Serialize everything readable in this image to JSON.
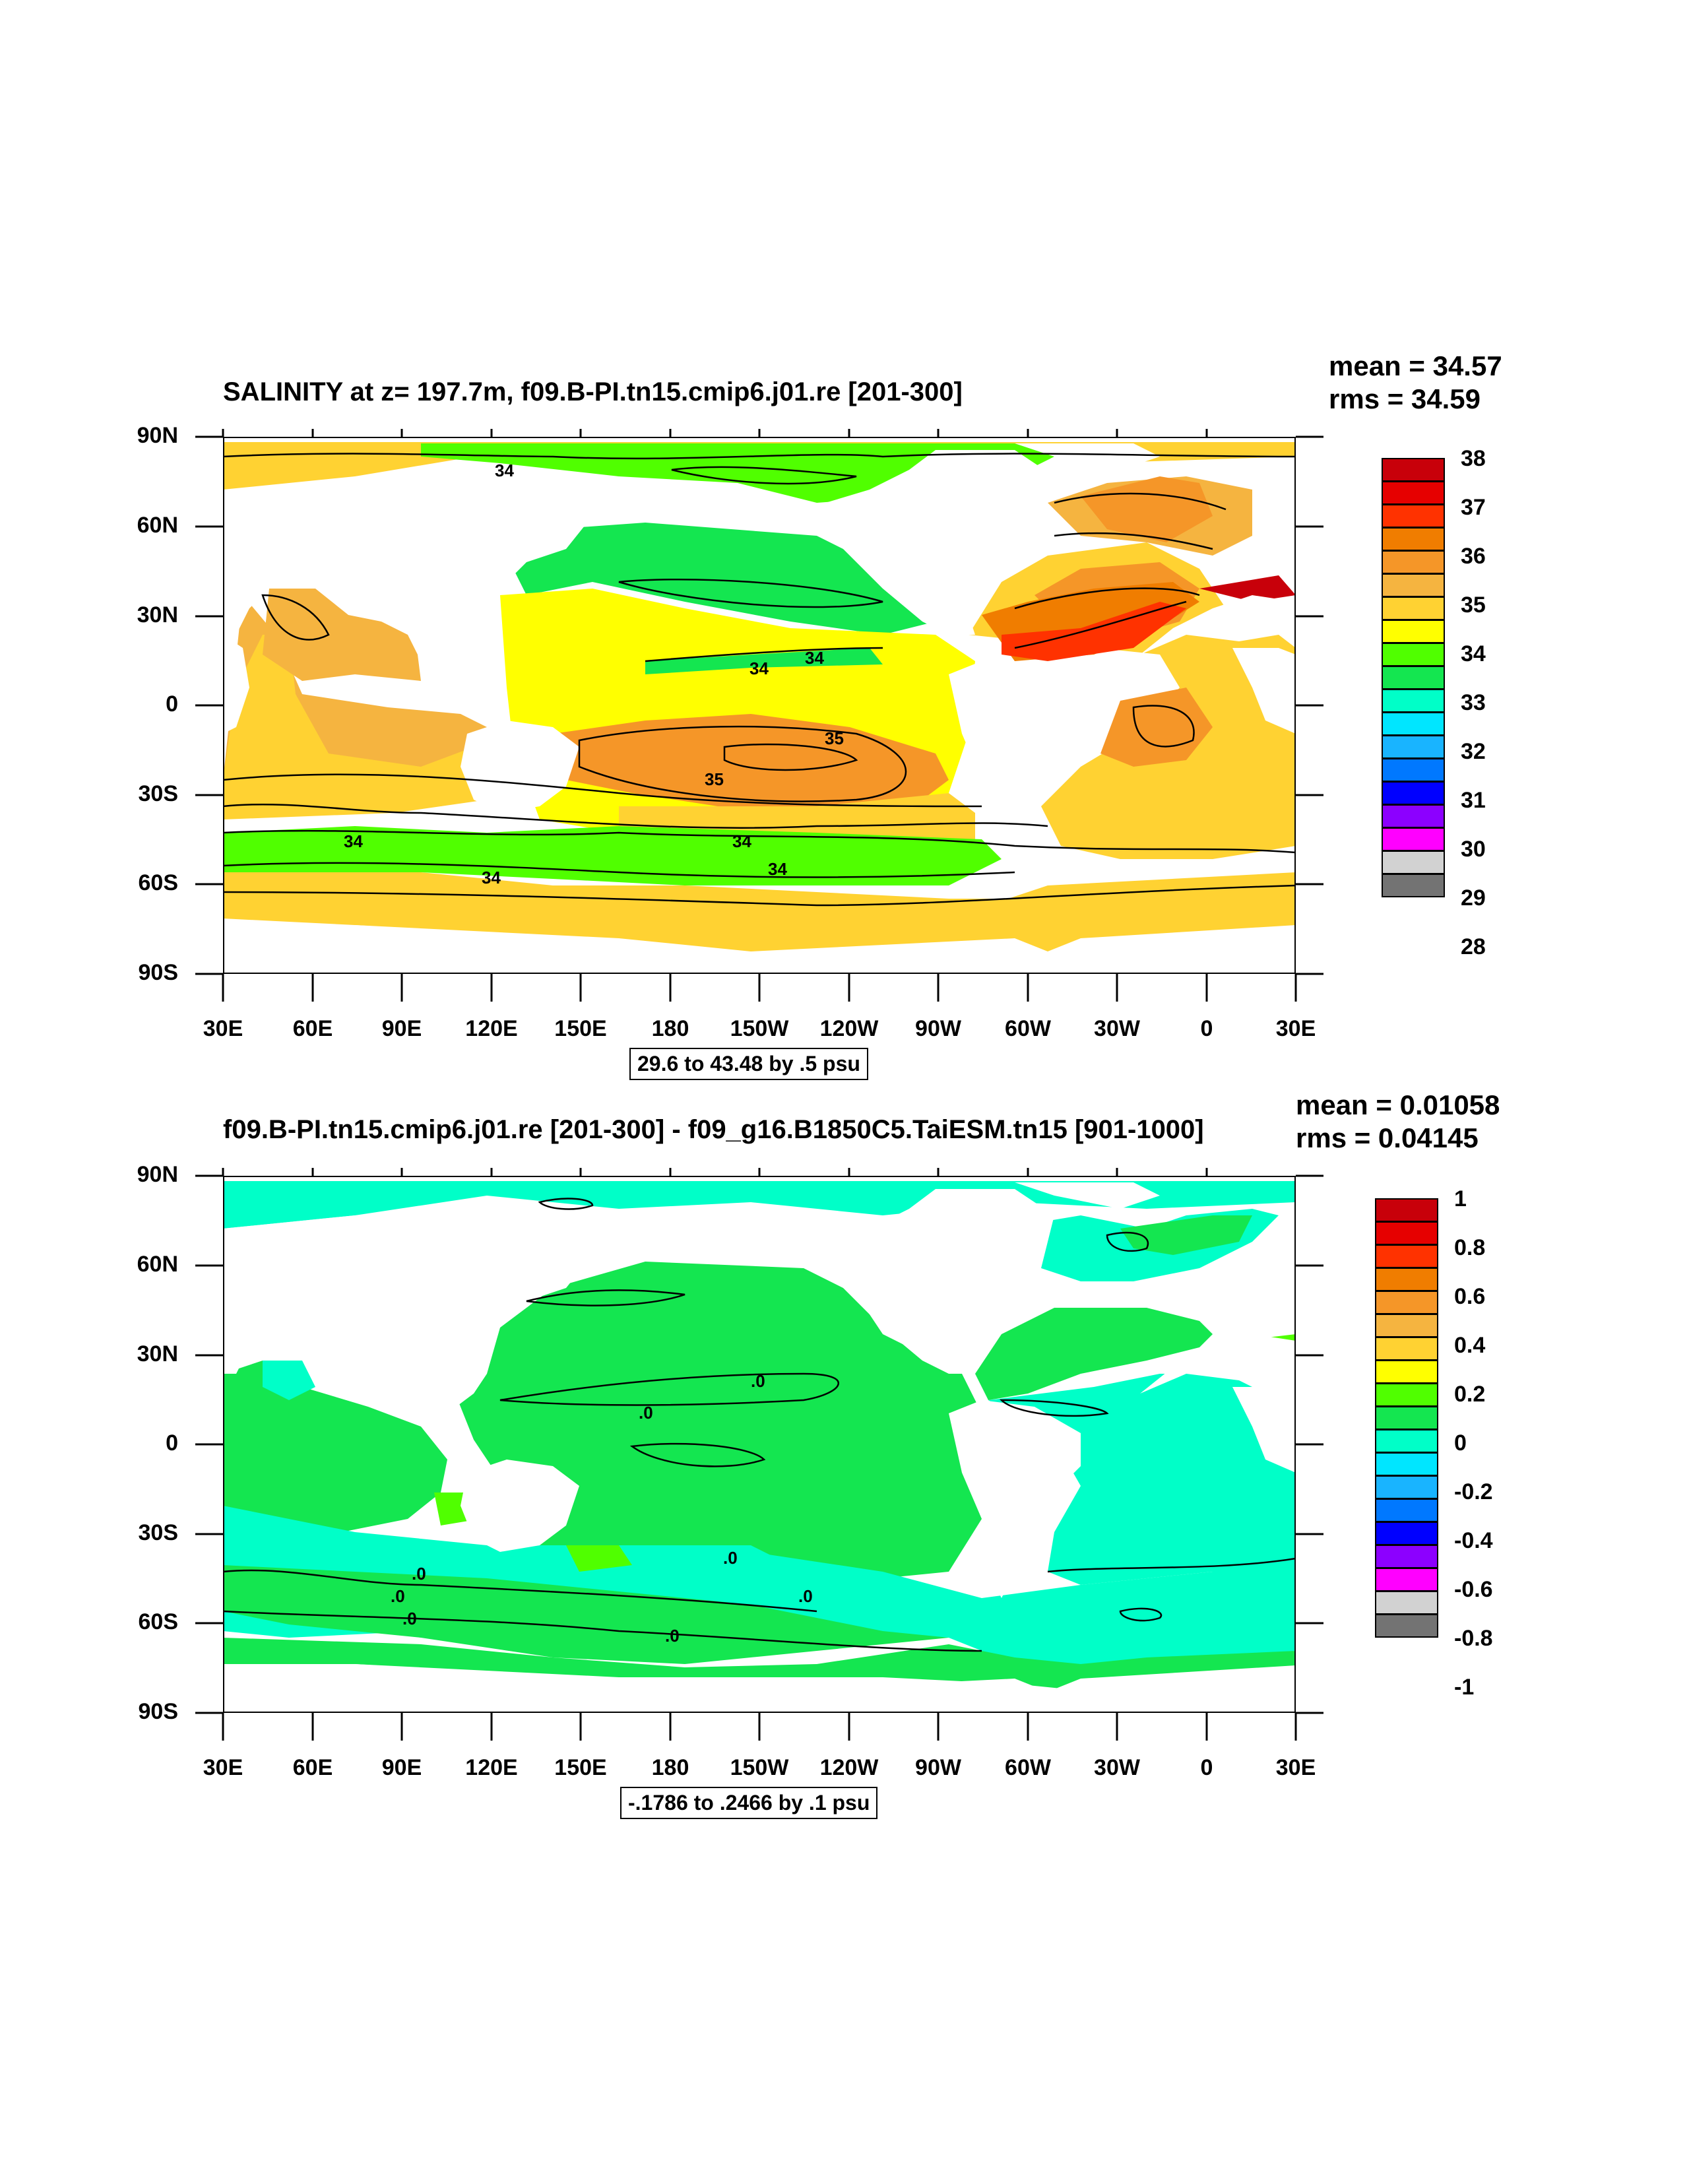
{
  "panels": [
    {
      "title": "SALINITY at z= 197.7m, f09.B-PI.tn15.cmip6.j01.re [201-300]",
      "mean": "mean = 34.57",
      "rms": "rms = 34.59",
      "range": "29.6 to 43.48 by .5 psu",
      "lat_ticks": [
        "90N",
        "60N",
        "30N",
        "0",
        "30S",
        "60S",
        "90S"
      ],
      "lon_ticks": [
        "30E",
        "60E",
        "90E",
        "120E",
        "150E",
        "180",
        "150W",
        "120W",
        "90W",
        "60W",
        "30W",
        "0",
        "30E"
      ],
      "legend_labels": [
        "38",
        "37",
        "36",
        "35",
        "34",
        "33",
        "32",
        "31",
        "30",
        "29",
        "28"
      ],
      "legend_colors": [
        "#c8000a",
        "#e60000",
        "#ff3200",
        "#f07d00",
        "#f59628",
        "#f5b440",
        "#ffd232",
        "#ffff00",
        "#50ff00",
        "#14e650",
        "#00ffc8",
        "#00e6ff",
        "#19b4ff",
        "#0078ff",
        "#0000ff",
        "#8c00ff",
        "#ff00ff",
        "#d2d2d2",
        "#737373"
      ],
      "contour_labels": [
        "34",
        "34",
        "34",
        "35",
        "35",
        "34",
        "34",
        "34",
        "34"
      ]
    },
    {
      "title": "f09.B-PI.tn15.cmip6.j01.re [201-300] - f09_g16.B1850C5.TaiESM.tn15 [901-1000]",
      "mean": "mean = 0.01058",
      "rms": "rms = 0.04145",
      "range": "-.1786 to .2466 by .1 psu",
      "lat_ticks": [
        "90N",
        "60N",
        "30N",
        "0",
        "30S",
        "60S",
        "90S"
      ],
      "lon_ticks": [
        "30E",
        "60E",
        "90E",
        "120E",
        "150E",
        "180",
        "150W",
        "120W",
        "90W",
        "60W",
        "30W",
        "0",
        "30E"
      ],
      "legend_labels": [
        "1",
        "0.8",
        "0.6",
        "0.4",
        "0.2",
        "0",
        "-0.2",
        "-0.4",
        "-0.6",
        "-0.8",
        "-1"
      ],
      "legend_colors": [
        "#c8000a",
        "#e60000",
        "#ff3200",
        "#f07d00",
        "#f59628",
        "#f5b440",
        "#ffd232",
        "#ffff00",
        "#50ff00",
        "#14e650",
        "#00ffc8",
        "#00e6ff",
        "#19b4ff",
        "#0078ff",
        "#0000ff",
        "#8c00ff",
        "#ff00ff",
        "#d2d2d2",
        "#737373"
      ],
      "contour_labels": [
        ".0",
        ".0",
        ".0",
        ".0",
        ".0",
        ".0",
        ".0",
        ".0"
      ]
    }
  ]
}
